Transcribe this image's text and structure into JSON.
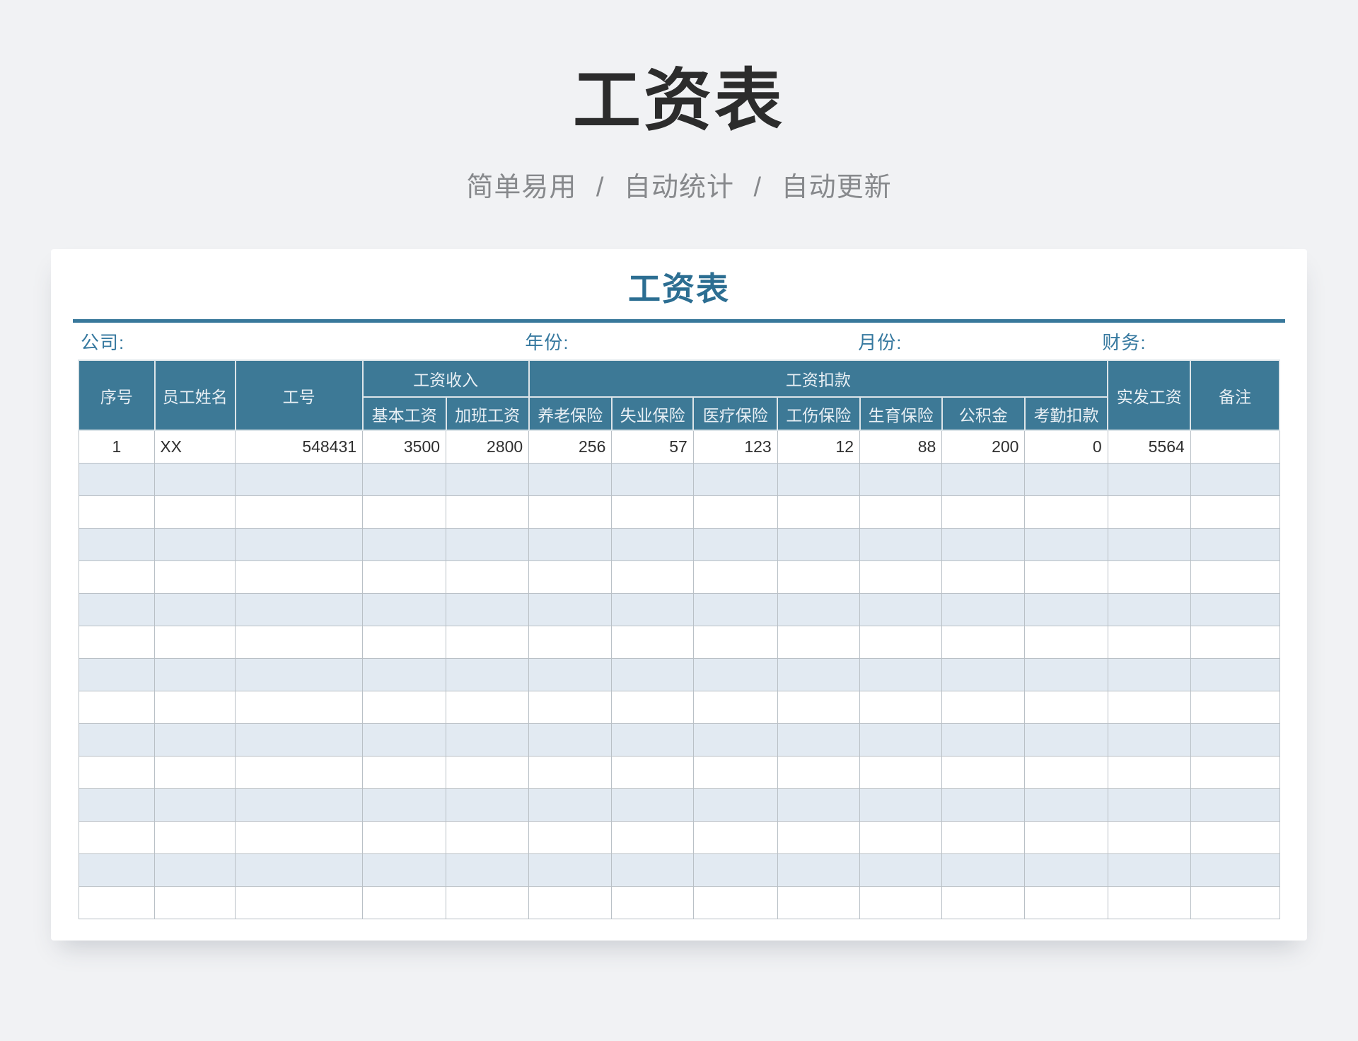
{
  "hero": {
    "title": "工资表",
    "subtitle": "简单易用 / 自动统计 / 自动更新"
  },
  "card": {
    "title": "工资表",
    "info_labels": [
      "公司:",
      "年份:",
      "月份:",
      "财务:"
    ]
  },
  "table": {
    "col_widths_percent": [
      6.35,
      6.7,
      10.6,
      6.95,
      6.9,
      6.9,
      6.8,
      7.0,
      6.85,
      6.85,
      6.9,
      6.9,
      6.9,
      7.4
    ],
    "header_row1": [
      {
        "label": "序号",
        "rowspan": 2,
        "name": "col-index"
      },
      {
        "label": "员工姓名",
        "rowspan": 2,
        "name": "col-employee-name"
      },
      {
        "label": "工号",
        "rowspan": 2,
        "name": "col-employee-id"
      },
      {
        "label": "工资收入",
        "colspan": 2,
        "name": "group-salary-income"
      },
      {
        "label": "工资扣款",
        "colspan": 7,
        "name": "group-salary-deductions"
      },
      {
        "label": "实发工资",
        "rowspan": 2,
        "name": "col-net-salary"
      },
      {
        "label": "备注",
        "rowspan": 2,
        "name": "col-remarks"
      }
    ],
    "header_row2": [
      {
        "label": "基本工资",
        "name": "col-base-salary"
      },
      {
        "label": "加班工资",
        "name": "col-overtime-pay"
      },
      {
        "label": "养老保险",
        "name": "col-pension-insurance"
      },
      {
        "label": "失业保险",
        "name": "col-unemployment-insurance"
      },
      {
        "label": "医疗保险",
        "name": "col-medical-insurance"
      },
      {
        "label": "工伤保险",
        "name": "col-work-injury-insurance"
      },
      {
        "label": "生育保险",
        "name": "col-maternity-insurance"
      },
      {
        "label": "公积金",
        "name": "col-housing-fund"
      },
      {
        "label": "考勤扣款",
        "name": "col-attendance-deduction"
      }
    ],
    "alignments": [
      "center",
      "left",
      "right",
      "right",
      "right",
      "right",
      "right",
      "right",
      "right",
      "right",
      "right",
      "right",
      "right",
      "left"
    ],
    "rows": [
      [
        "1",
        "XX",
        "548431",
        "3500",
        "2800",
        "256",
        "57",
        "123",
        "12",
        "88",
        "200",
        "0",
        "5564",
        ""
      ]
    ],
    "total_rows": 15
  },
  "colors": {
    "accent_teal": "#38789b",
    "header_bg": "#3d7996",
    "alt_row_bg": "#e2eaf2",
    "card_title": "#2c6e92",
    "hero_title": "#2c2c2c",
    "hero_subtitle": "#87898c",
    "page_bg": "#f1f2f4"
  }
}
